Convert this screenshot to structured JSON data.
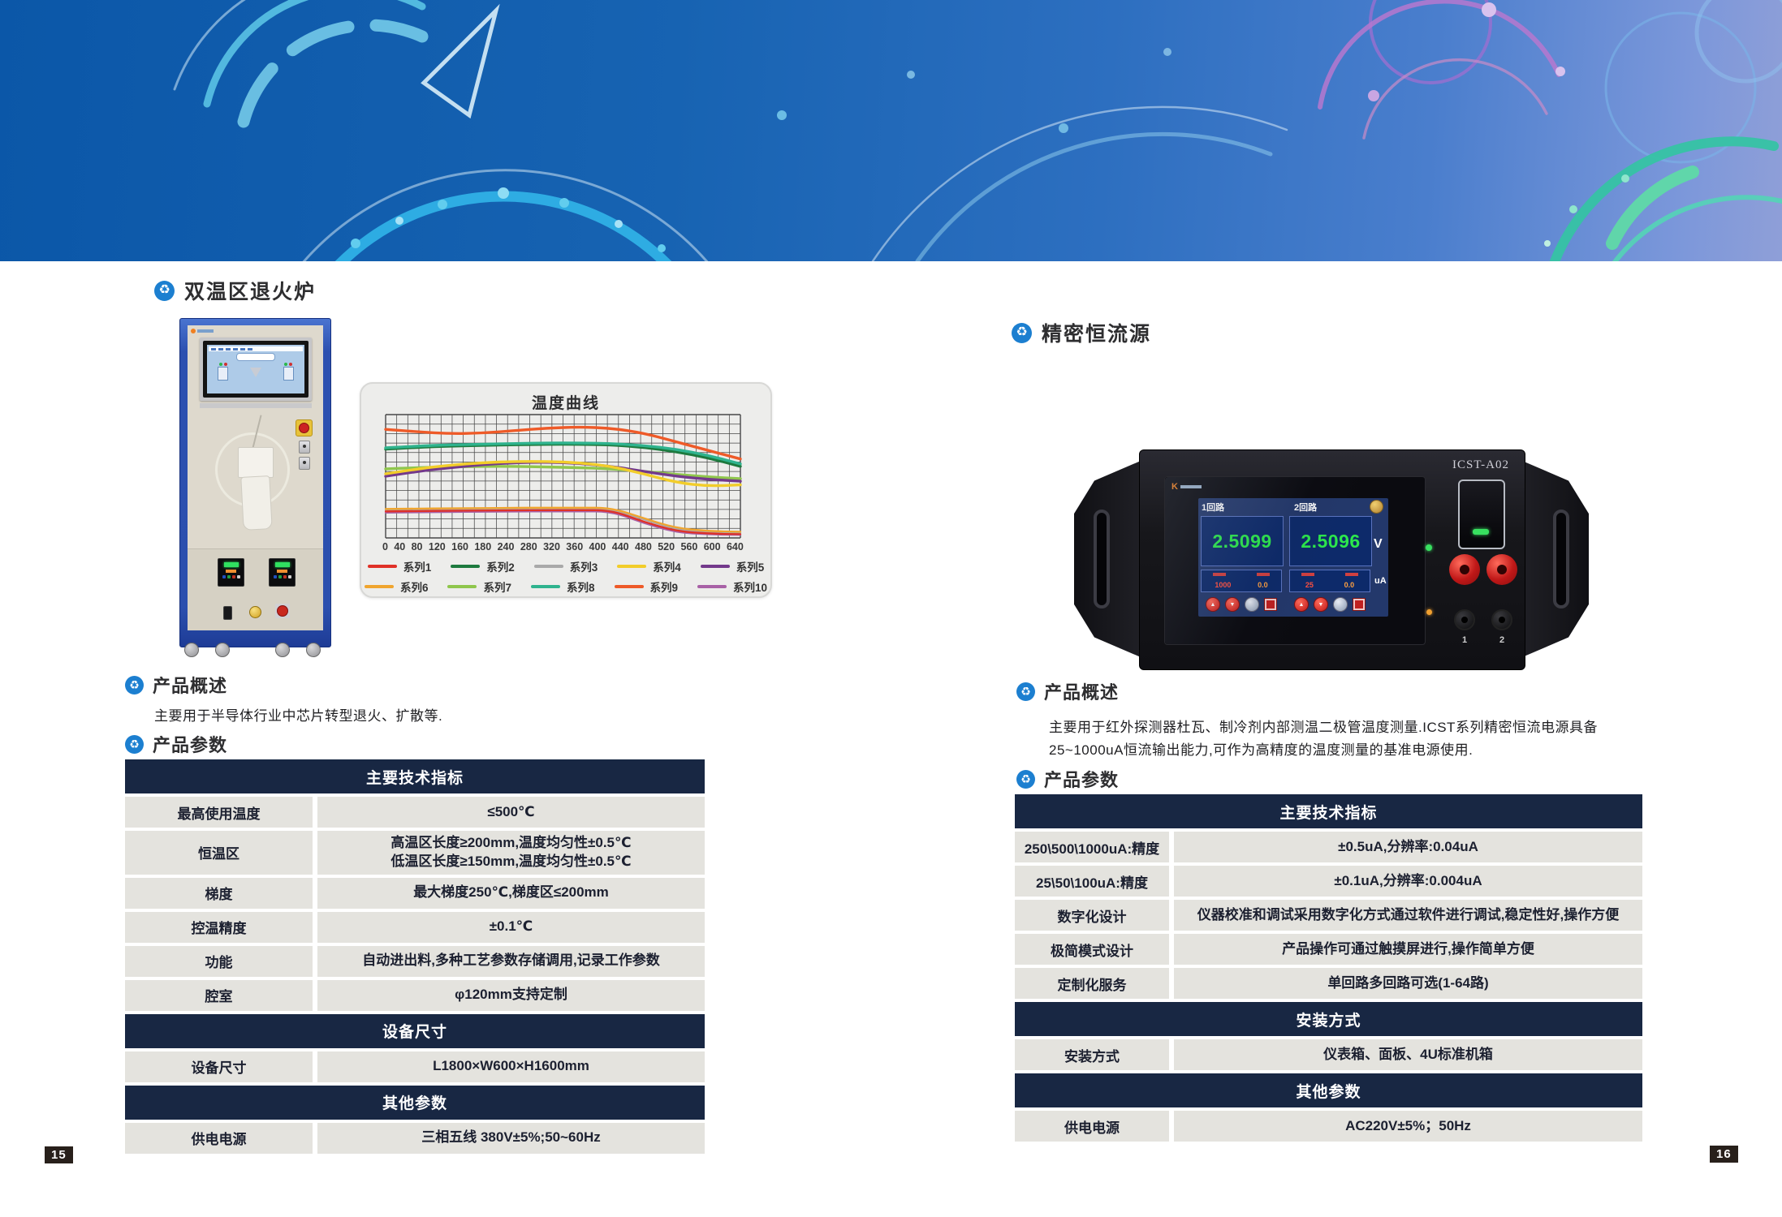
{
  "page": {
    "left_page_number": "15",
    "right_page_number": "16"
  },
  "icons": {
    "section_marker": "♻",
    "up_arrow": "▲",
    "down_arrow": "▼"
  },
  "colors": {
    "banner_blue_start": "#0b57a8",
    "banner_blue_end": "#8f9fd8",
    "navy_header": "#182743",
    "row_bg": "#e4e3de",
    "accent_icon_blue": "#1c7fd0",
    "page_badge_bg": "#28201b",
    "screen_value_green": "#2ce84c"
  },
  "left_product": {
    "title": "双温区退火炉",
    "overview_heading": "产品概述",
    "overview_text": "主要用于半导体行业中芯片转型退火、扩散等.",
    "params_heading": "产品参数",
    "table": {
      "sections": [
        {
          "header": "主要技术指标",
          "rows": [
            {
              "label": "最高使用温度",
              "value": "≤500℃"
            },
            {
              "label": "恒温区",
              "value": "高温区长度≥200mm,温度均匀性±0.5℃\n低温区长度≥150mm,温度均匀性±0.5℃"
            },
            {
              "label": "梯度",
              "value": "最大梯度250℃,梯度区≤200mm"
            },
            {
              "label": "控温精度",
              "value": "±0.1℃"
            },
            {
              "label": "功能",
              "value": "自动进出料,多种工艺参数存储调用,记录工作参数"
            },
            {
              "label": "腔室",
              "value": "φ120mm支持定制"
            }
          ]
        },
        {
          "header": "设备尺寸",
          "rows": [
            {
              "label": "设备尺寸",
              "value": "L1800×W600×H1600mm"
            }
          ]
        },
        {
          "header": "其他参数",
          "rows": [
            {
              "label": "供电电源",
              "value": "三相五线 380V±5%;50~60Hz"
            }
          ]
        }
      ]
    }
  },
  "right_product": {
    "title": "精密恒流源",
    "overview_heading": "产品概述",
    "overview_line1": "主要用于红外探测器杜瓦、制冷剂内部测温二极管温度测量.ICST系列精密恒流电源具备",
    "overview_line2": "25~1000uA恒流输出能力,可作为高精度的温度测量的基准电源使用.",
    "params_heading": "产品参数",
    "device": {
      "model": "ICST-A02",
      "ch1_label": "1回路",
      "ch2_label": "2回路",
      "ch1_value": "2.5099",
      "ch2_value": "2.5096",
      "volt_unit": "V",
      "current_unit": "uA",
      "ch1_set": "1000",
      "ch1_meas": "0.0",
      "ch2_set": "25",
      "ch2_meas": "0.0",
      "terminals": [
        "1",
        "2"
      ]
    },
    "table": {
      "sections": [
        {
          "header": "主要技术指标",
          "rows": [
            {
              "label": "250\\500\\1000uA:精度",
              "value": "±0.5uA,分辨率:0.04uA"
            },
            {
              "label": "25\\50\\100uA:精度",
              "value": "±0.1uA,分辨率:0.004uA"
            },
            {
              "label": "数字化设计",
              "value": "仪器校准和调试采用数字化方式通过软件进行调试,稳定性好,操作方便"
            },
            {
              "label": "极简模式设计",
              "value": "产品操作可通过触摸屏进行,操作简单方便"
            },
            {
              "label": "定制化服务",
              "value": "单回路多回路可选(1-64路)"
            }
          ]
        },
        {
          "header": "安装方式",
          "rows": [
            {
              "label": "安装方式",
              "value": "仪表箱、面板、4U标准机箱"
            }
          ]
        },
        {
          "header": "其他参数",
          "rows": [
            {
              "label": "供电电源",
              "value": "AC220V±5%；50Hz"
            }
          ]
        }
      ]
    }
  },
  "chart_data": {
    "type": "line",
    "title": "温度曲线",
    "xlabel": "",
    "ylabel": "",
    "x_axis_tick_labels": [
      "0",
      "40",
      "80",
      "120",
      "160",
      "180",
      "240",
      "280",
      "320",
      "360",
      "400",
      "440",
      "480",
      "520",
      "560",
      "600",
      "640"
    ],
    "x": [
      0,
      60,
      120,
      180,
      240,
      300,
      360,
      420,
      480,
      540,
      600,
      660
    ],
    "ylim": [
      0,
      100
    ],
    "grid": {
      "cols": 32,
      "rows": 13
    },
    "legend_position": "bottom",
    "legend_rows": [
      [
        "系列1",
        "系列2",
        "系列3",
        "系列4",
        "系列5"
      ],
      [
        "系列6",
        "系列7",
        "系列8",
        "系列9",
        "系列10"
      ]
    ],
    "series": [
      {
        "name": "系列1",
        "color": "#e03127",
        "values": [
          21.5,
          21.8,
          22,
          22.2,
          22.4,
          22.5,
          22.5,
          22.5,
          13,
          5.5,
          3.5,
          3
        ]
      },
      {
        "name": "系列2",
        "color": "#1d7a3e",
        "values": [
          72,
          73.5,
          74.5,
          75,
          75.5,
          76,
          76,
          75.5,
          73.5,
          70,
          65,
          58
        ]
      },
      {
        "name": "系列3",
        "color": "#a9a9a9",
        "values": [
          22.5,
          22.8,
          23,
          23.2,
          23.4,
          23.5,
          23.5,
          23.5,
          15,
          7,
          4.5,
          4
        ]
      },
      {
        "name": "系列4",
        "color": "#f2cd2a",
        "values": [
          52,
          56,
          59,
          61,
          62,
          62,
          61,
          58,
          52,
          45,
          42,
          43
        ]
      },
      {
        "name": "系列5",
        "color": "#73398b",
        "values": [
          50,
          54,
          57,
          59.5,
          61,
          61.5,
          60.5,
          58,
          54,
          50,
          47.5,
          46
        ]
      },
      {
        "name": "系列6",
        "color": "#f0a52e",
        "values": [
          23.5,
          23.8,
          24,
          24.2,
          24.4,
          24.5,
          24.5,
          24.5,
          16,
          8,
          5.5,
          5
        ]
      },
      {
        "name": "系列7",
        "color": "#8fc64c",
        "values": [
          56,
          57,
          57.5,
          58,
          58,
          57.5,
          57,
          56,
          54,
          51.5,
          49.5,
          48
        ]
      },
      {
        "name": "系列8",
        "color": "#2fb38e",
        "values": [
          73,
          74.5,
          75.5,
          76,
          76.5,
          77,
          77,
          76.5,
          75,
          72,
          67,
          60
        ]
      },
      {
        "name": "系列9",
        "color": "#ee5a28",
        "values": [
          88,
          86,
          84.5,
          85,
          87,
          89,
          90,
          89,
          85,
          78,
          71,
          64
        ]
      },
      {
        "name": "系列10",
        "color": "#a861a6",
        "values": [
          20.5,
          20.8,
          21,
          21.2,
          21.4,
          21.5,
          21.5,
          21.5,
          12,
          4.5,
          2.8,
          2.5
        ]
      }
    ]
  }
}
